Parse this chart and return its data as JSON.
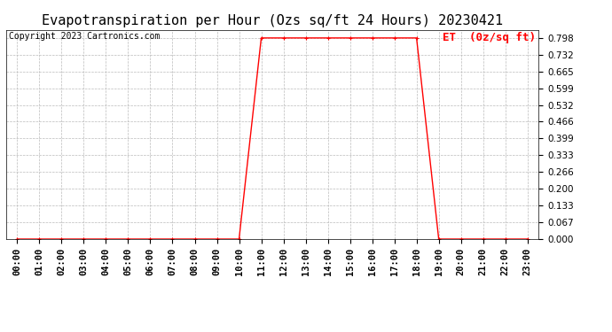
{
  "title": "Evapotranspiration per Hour (Ozs sq/ft 24 Hours) 20230421",
  "copyright": "Copyright 2023 Cartronics.com",
  "legend_label": "ET  (0z/sq ft)",
  "line_color": "#ff0000",
  "background_color": "#ffffff",
  "grid_color": "#bbbbbb",
  "hours": [
    "00:00",
    "01:00",
    "02:00",
    "03:00",
    "04:00",
    "05:00",
    "06:00",
    "07:00",
    "08:00",
    "09:00",
    "10:00",
    "11:00",
    "12:00",
    "13:00",
    "14:00",
    "15:00",
    "16:00",
    "17:00",
    "18:00",
    "19:00",
    "20:00",
    "21:00",
    "22:00",
    "23:00"
  ],
  "values": [
    0.0,
    0.0,
    0.0,
    0.0,
    0.0,
    0.0,
    0.0,
    0.0,
    0.0,
    0.0,
    0.0,
    0.798,
    0.798,
    0.798,
    0.798,
    0.798,
    0.798,
    0.798,
    0.798,
    0.0,
    0.0,
    0.0,
    0.0,
    0.0
  ],
  "yticks": [
    0.0,
    0.067,
    0.133,
    0.2,
    0.266,
    0.333,
    0.399,
    0.466,
    0.532,
    0.599,
    0.665,
    0.732,
    0.798
  ],
  "ylim": [
    0.0,
    0.83
  ],
  "title_fontsize": 11,
  "copyright_fontsize": 7,
  "legend_fontsize": 9,
  "tick_fontsize": 7.5
}
